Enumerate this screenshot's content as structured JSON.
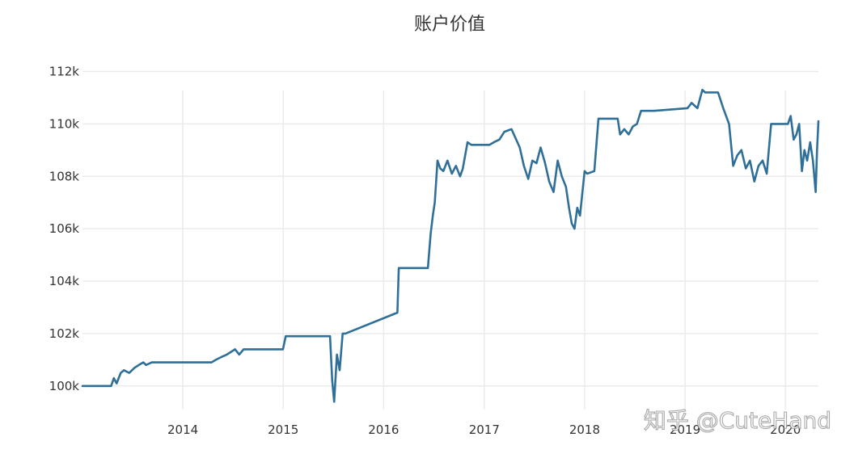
{
  "chart_data": {
    "type": "line",
    "title": "账户价值",
    "xlabel": "",
    "ylabel": "",
    "x_tick_labels": [
      "2014",
      "2015",
      "2016",
      "2017",
      "2018",
      "2019",
      "2020"
    ],
    "y_tick_labels": [
      "100k",
      "102k",
      "104k",
      "106k",
      "108k",
      "110k",
      "112k"
    ],
    "y_ticks": [
      100000,
      102000,
      104000,
      106000,
      108000,
      110000,
      112000
    ],
    "xlim": [
      "2013-01-01",
      "2020-04-30"
    ],
    "ylim": [
      99100,
      112200
    ],
    "grid": true,
    "series": [
      {
        "color": "#2f6f98",
        "x": [
          "2013-01-01",
          "2013-03-01",
          "2013-04-15",
          "2013-04-25",
          "2013-05-05",
          "2013-05-20",
          "2013-06-01",
          "2013-06-20",
          "2013-07-10",
          "2013-07-25",
          "2013-08-10",
          "2013-08-20",
          "2013-09-10",
          "2013-10-01",
          "2014-01-01",
          "2014-04-15",
          "2014-05-01",
          "2014-05-20",
          "2014-06-10",
          "2014-06-25",
          "2014-07-10",
          "2014-07-25",
          "2014-08-10",
          "2014-08-25",
          "2014-12-31",
          "2015-01-10",
          "2015-06-20",
          "2015-06-28",
          "2015-07-05",
          "2015-07-15",
          "2015-07-25",
          "2015-08-05",
          "2015-08-15",
          "2016-02-20",
          "2016-02-25",
          "2016-06-10",
          "2016-06-20",
          "2016-06-28",
          "2016-07-05",
          "2016-07-15",
          "2016-07-25",
          "2016-08-05",
          "2016-08-20",
          "2016-09-05",
          "2016-09-20",
          "2016-10-05",
          "2016-10-15",
          "2016-11-01",
          "2016-11-15",
          "2017-01-20",
          "2017-02-05",
          "2017-02-25",
          "2017-03-15",
          "2017-04-10",
          "2017-05-10",
          "2017-05-25",
          "2017-06-10",
          "2017-06-25",
          "2017-07-10",
          "2017-07-25",
          "2017-08-10",
          "2017-08-25",
          "2017-09-10",
          "2017-09-25",
          "2017-10-10",
          "2017-10-25",
          "2017-11-05",
          "2017-11-15",
          "2017-11-25",
          "2017-12-05",
          "2017-12-15",
          "2018-01-01",
          "2018-01-10",
          "2018-02-05",
          "2018-02-20",
          "2018-03-10",
          "2018-05-01",
          "2018-05-10",
          "2018-05-25",
          "2018-06-10",
          "2018-06-25",
          "2018-07-10",
          "2018-07-25",
          "2018-08-10",
          "2018-08-25",
          "2018-09-10",
          "2019-01-10",
          "2019-01-25",
          "2019-02-15",
          "2019-03-05",
          "2019-03-15",
          "2019-05-01",
          "2019-05-20",
          "2019-06-10",
          "2019-06-25",
          "2019-07-10",
          "2019-07-25",
          "2019-08-10",
          "2019-08-25",
          "2019-09-10",
          "2019-09-25",
          "2019-10-10",
          "2019-10-25",
          "2019-11-10",
          "2019-11-25",
          "2019-12-10",
          "2020-01-10",
          "2020-01-20",
          "2020-01-31",
          "2020-02-10",
          "2020-02-20",
          "2020-03-01",
          "2020-03-10",
          "2020-03-20",
          "2020-03-31",
          "2020-04-10",
          "2020-04-20",
          "2020-04-25",
          "2020-04-30"
        ],
        "values": [
          100000,
          100000,
          100000,
          100300,
          100100,
          100500,
          100600,
          100500,
          100700,
          100800,
          100900,
          100800,
          100900,
          100900,
          100900,
          100900,
          101000,
          101100,
          101200,
          101300,
          101400,
          101200,
          101400,
          101400,
          101400,
          101900,
          101900,
          100200,
          99400,
          101200,
          100600,
          102000,
          102000,
          102800,
          104500,
          104500,
          105800,
          106500,
          107000,
          108600,
          108300,
          108200,
          108600,
          108100,
          108400,
          108000,
          108300,
          109300,
          109200,
          109200,
          109300,
          109400,
          109700,
          109800,
          109100,
          108400,
          107900,
          108600,
          108500,
          109100,
          108500,
          107800,
          107400,
          108600,
          108000,
          107600,
          106800,
          106200,
          106000,
          106800,
          106500,
          108200,
          108100,
          108200,
          110200,
          110200,
          110200,
          109600,
          109800,
          109600,
          109900,
          110000,
          110500,
          110500,
          110500,
          110500,
          110600,
          110800,
          110600,
          111300,
          111200,
          111200,
          110600,
          110000,
          108400,
          108800,
          109000,
          108300,
          108600,
          107800,
          108400,
          108600,
          108100,
          110000,
          110000,
          110000,
          110000,
          110300,
          109400,
          109600,
          110000,
          108200,
          109000,
          108600,
          109300,
          108600,
          107400,
          109000,
          110100
        ]
      }
    ]
  },
  "watermark": "知乎 @CuteHand"
}
